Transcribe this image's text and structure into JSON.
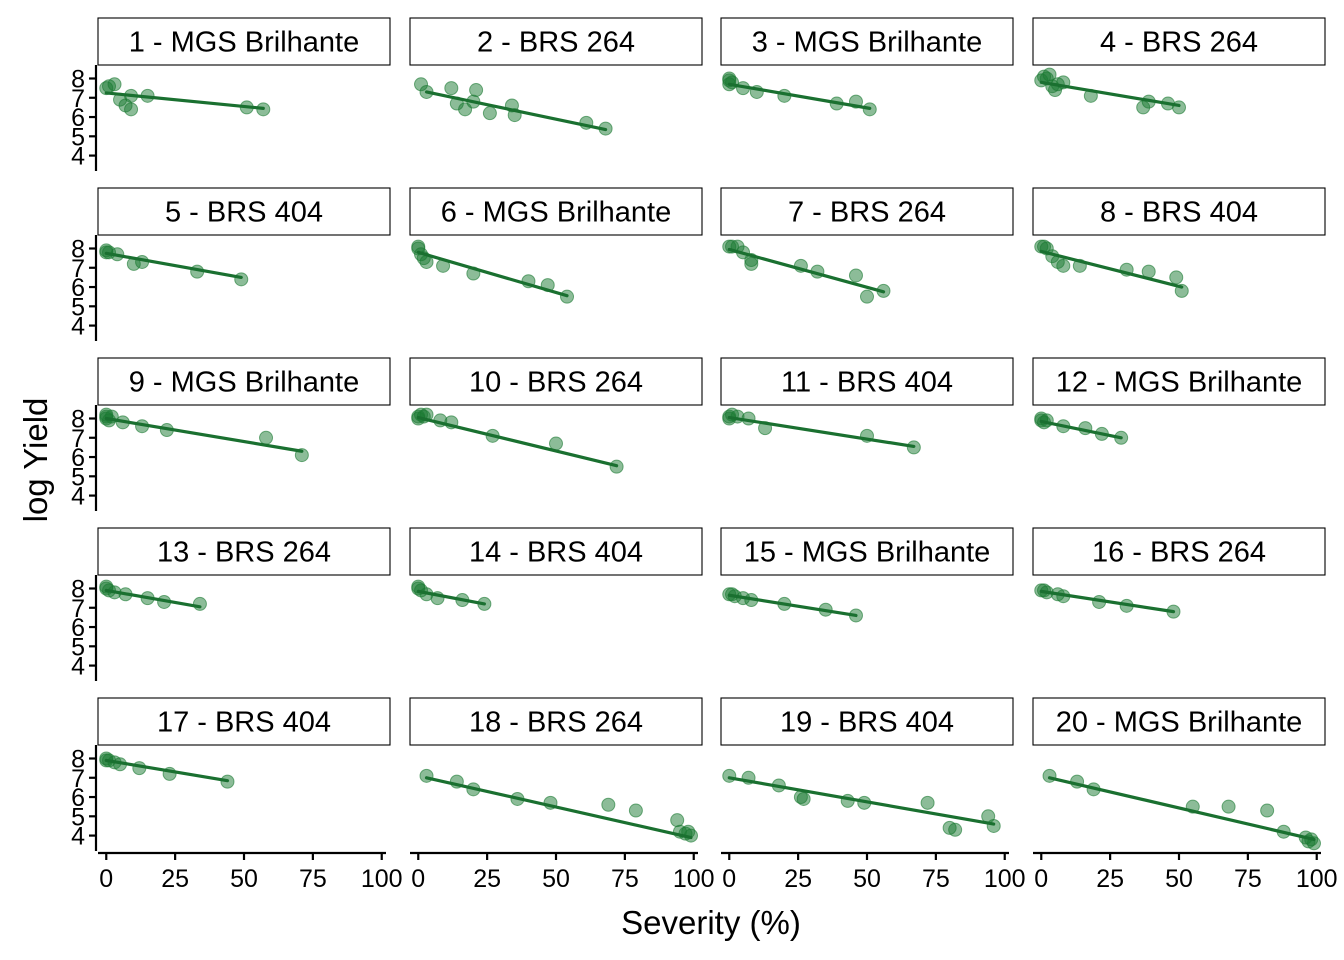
{
  "chart_data": {
    "type": "scatter",
    "xlabel": "Severity (%)",
    "ylabel": "log Yield",
    "xlim": [
      -3,
      103
    ],
    "ylim": [
      3.2,
      8.7
    ],
    "x_ticks": [
      0,
      25,
      50,
      75,
      100
    ],
    "y_ticks": [
      4,
      5,
      6,
      7,
      8
    ],
    "point_color": "#1a7a32",
    "line_color": "#1a7030",
    "facets": [
      {
        "label": "1 - MGS Brilhante",
        "x": [
          0,
          1,
          3,
          5,
          7,
          9,
          9,
          15,
          51,
          57
        ],
        "y": [
          7.5,
          7.6,
          7.7,
          6.9,
          6.6,
          6.4,
          7.1,
          7.1,
          6.5,
          6.4
        ],
        "fit": [
          [
            0,
            7.25
          ],
          [
            57,
            6.45
          ]
        ]
      },
      {
        "label": "2 - BRS 264",
        "x": [
          1,
          3,
          12,
          14,
          17,
          20,
          21,
          26,
          34,
          35,
          61,
          68
        ],
        "y": [
          7.7,
          7.3,
          7.5,
          6.7,
          6.4,
          6.8,
          7.4,
          6.2,
          6.6,
          6.1,
          5.7,
          5.4
        ],
        "fit": [
          [
            3,
            7.3
          ],
          [
            68,
            5.35
          ]
        ]
      },
      {
        "label": "3 - MGS Brilhante",
        "x": [
          0,
          0,
          0,
          1,
          5,
          10,
          20,
          39,
          46,
          51
        ],
        "y": [
          8.0,
          7.9,
          7.7,
          7.8,
          7.5,
          7.3,
          7.1,
          6.7,
          6.8,
          6.4
        ],
        "fit": [
          [
            0,
            7.7
          ],
          [
            51,
            6.45
          ]
        ]
      },
      {
        "label": "4 - BRS 264",
        "x": [
          0,
          1,
          2,
          3,
          4,
          5,
          6,
          8,
          18,
          37,
          39,
          46,
          50
        ],
        "y": [
          7.9,
          8.1,
          8.0,
          8.2,
          7.6,
          7.4,
          7.7,
          7.8,
          7.1,
          6.5,
          6.8,
          6.7,
          6.5
        ],
        "fit": [
          [
            0,
            7.8
          ],
          [
            50,
            6.6
          ]
        ]
      },
      {
        "label": "5 - BRS 404",
        "x": [
          0,
          0,
          1,
          4,
          10,
          13,
          33,
          49
        ],
        "y": [
          7.9,
          7.8,
          7.8,
          7.7,
          7.2,
          7.3,
          6.8,
          6.4
        ],
        "fit": [
          [
            0,
            7.75
          ],
          [
            49,
            6.5
          ]
        ]
      },
      {
        "label": "6 - MGS Brilhante",
        "x": [
          0,
          0,
          1,
          2,
          3,
          9,
          20,
          40,
          47,
          54
        ],
        "y": [
          8.1,
          8.0,
          7.7,
          7.5,
          7.3,
          7.1,
          6.7,
          6.3,
          6.1,
          5.5
        ],
        "fit": [
          [
            0,
            7.8
          ],
          [
            54,
            5.55
          ]
        ]
      },
      {
        "label": "7 - BRS 264",
        "x": [
          0,
          1,
          3,
          5,
          8,
          8,
          26,
          32,
          46,
          50,
          56
        ],
        "y": [
          8.1,
          8.1,
          8.1,
          7.8,
          7.4,
          7.2,
          7.1,
          6.8,
          6.6,
          5.5,
          5.8
        ],
        "fit": [
          [
            0,
            7.95
          ],
          [
            56,
            5.75
          ]
        ]
      },
      {
        "label": "8 - BRS 404",
        "x": [
          0,
          1,
          2,
          4,
          6,
          8,
          14,
          31,
          39,
          49,
          51
        ],
        "y": [
          8.1,
          8.1,
          8.0,
          7.6,
          7.3,
          7.1,
          7.1,
          6.9,
          6.8,
          6.5,
          5.8
        ],
        "fit": [
          [
            0,
            7.85
          ],
          [
            51,
            6.0
          ]
        ]
      },
      {
        "label": "9 - MGS Brilhante",
        "x": [
          0,
          0,
          0,
          1,
          2,
          6,
          13,
          22,
          58,
          71
        ],
        "y": [
          8.1,
          8.0,
          8.2,
          7.9,
          8.1,
          7.8,
          7.6,
          7.4,
          7.0,
          6.1
        ],
        "fit": [
          [
            0,
            8.0
          ],
          [
            71,
            6.3
          ]
        ]
      },
      {
        "label": "10 - BRS 264",
        "x": [
          0,
          0,
          1,
          2,
          3,
          8,
          12,
          27,
          50,
          72
        ],
        "y": [
          8.1,
          8.0,
          8.2,
          8.1,
          8.2,
          7.9,
          7.8,
          7.1,
          6.7,
          5.5
        ],
        "fit": [
          [
            0,
            8.05
          ],
          [
            72,
            5.55
          ]
        ]
      },
      {
        "label": "11 - BRS 404",
        "x": [
          0,
          0,
          1,
          3,
          7,
          13,
          50,
          67
        ],
        "y": [
          8.1,
          8.0,
          8.2,
          8.1,
          8.0,
          7.5,
          7.1,
          6.5
        ],
        "fit": [
          [
            0,
            8.05
          ],
          [
            67,
            6.55
          ]
        ]
      },
      {
        "label": "12 - MGS Brilhante",
        "x": [
          0,
          0,
          1,
          2,
          8,
          16,
          22,
          29
        ],
        "y": [
          8.0,
          7.9,
          7.8,
          7.9,
          7.6,
          7.5,
          7.2,
          7.0
        ],
        "fit": [
          [
            0,
            7.85
          ],
          [
            29,
            7.0
          ]
        ]
      },
      {
        "label": "13 - BRS 264",
        "x": [
          0,
          0,
          1,
          3,
          7,
          15,
          21,
          34
        ],
        "y": [
          8.1,
          8.0,
          7.9,
          7.8,
          7.7,
          7.5,
          7.3,
          7.2
        ],
        "fit": [
          [
            0,
            7.9
          ],
          [
            34,
            7.05
          ]
        ]
      },
      {
        "label": "14 - BRS 404",
        "x": [
          0,
          0,
          1,
          3,
          7,
          16,
          24
        ],
        "y": [
          8.1,
          8.0,
          7.9,
          7.7,
          7.5,
          7.4,
          7.2
        ],
        "fit": [
          [
            0,
            7.85
          ],
          [
            24,
            7.2
          ]
        ]
      },
      {
        "label": "15 - MGS Brilhante",
        "x": [
          0,
          1,
          2,
          5,
          8,
          20,
          35,
          46
        ],
        "y": [
          7.7,
          7.7,
          7.6,
          7.5,
          7.4,
          7.2,
          6.9,
          6.6
        ],
        "fit": [
          [
            0,
            7.65
          ],
          [
            46,
            6.6
          ]
        ]
      },
      {
        "label": "16 - BRS 264",
        "x": [
          0,
          1,
          2,
          6,
          8,
          21,
          31,
          48
        ],
        "y": [
          7.9,
          7.9,
          7.8,
          7.7,
          7.6,
          7.3,
          7.1,
          6.8
        ],
        "fit": [
          [
            0,
            7.85
          ],
          [
            48,
            6.8
          ]
        ]
      },
      {
        "label": "17 - BRS 404",
        "x": [
          0,
          0,
          1,
          3,
          5,
          12,
          23,
          44
        ],
        "y": [
          8.0,
          7.9,
          7.9,
          7.8,
          7.7,
          7.5,
          7.2,
          6.8
        ],
        "fit": [
          [
            0,
            7.9
          ],
          [
            44,
            6.85
          ]
        ]
      },
      {
        "label": "18 - BRS 264",
        "x": [
          3,
          14,
          20,
          36,
          48,
          69,
          79,
          94,
          95,
          97,
          98,
          99
        ],
        "y": [
          7.1,
          6.8,
          6.4,
          5.9,
          5.7,
          5.6,
          5.3,
          4.8,
          4.2,
          4.1,
          4.2,
          4.0
        ],
        "fit": [
          [
            3,
            7.0
          ],
          [
            99,
            3.9
          ]
        ]
      },
      {
        "label": "19 - BRS 404",
        "x": [
          0,
          7,
          18,
          26,
          27,
          43,
          49,
          72,
          80,
          82,
          94,
          96
        ],
        "y": [
          7.1,
          7.0,
          6.6,
          6.0,
          5.9,
          5.8,
          5.7,
          5.7,
          4.4,
          4.3,
          5.0,
          4.5
        ],
        "fit": [
          [
            0,
            7.0
          ],
          [
            96,
            4.6
          ]
        ]
      },
      {
        "label": "20 - MGS Brilhante",
        "x": [
          3,
          13,
          19,
          55,
          68,
          82,
          88,
          96,
          97,
          98,
          99
        ],
        "y": [
          7.1,
          6.8,
          6.4,
          5.5,
          5.5,
          5.3,
          4.2,
          3.9,
          3.7,
          3.8,
          3.6
        ],
        "fit": [
          [
            3,
            7.0
          ],
          [
            99,
            3.8
          ]
        ]
      }
    ]
  }
}
